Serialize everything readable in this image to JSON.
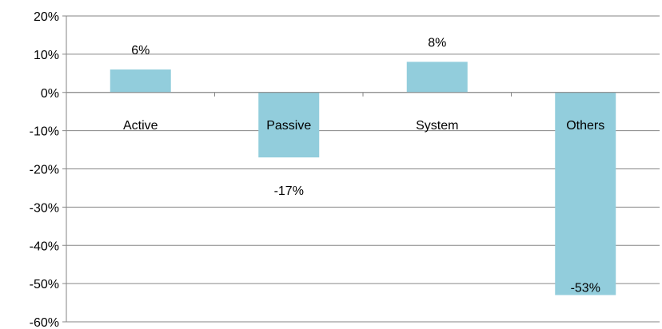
{
  "chart_data": {
    "type": "bar",
    "categories": [
      "Active",
      "Passive",
      "System",
      "Others"
    ],
    "values": [
      6,
      -17,
      8,
      -53
    ],
    "data_labels": [
      "6%",
      "-17%",
      "8%",
      "-53%"
    ],
    "yticks": [
      20,
      10,
      0,
      -10,
      -20,
      -30,
      -40,
      -50,
      -60
    ],
    "ytick_labels": [
      "20%",
      "10%",
      "0%",
      "-10%",
      "-20%",
      "-30%",
      "-40%",
      "-50%",
      "-60%"
    ],
    "ylim": [
      -60,
      20
    ],
    "grid": true,
    "legend": "none",
    "bar_color": "#92CDDC",
    "gridline_color": "#868686",
    "axis_color": "#868686"
  }
}
